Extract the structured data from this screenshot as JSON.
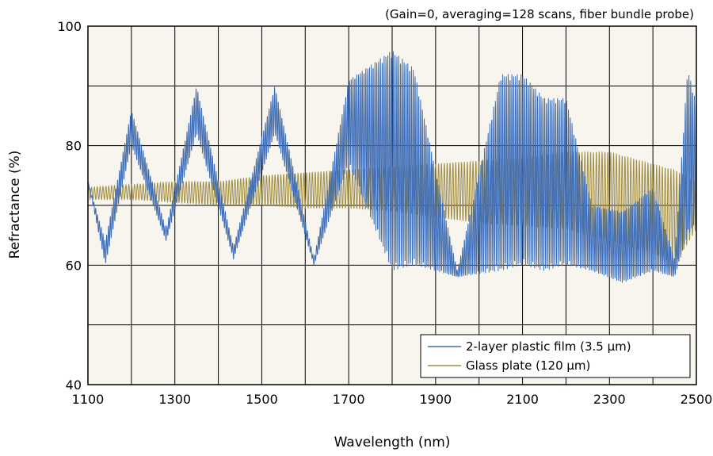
{
  "chart_data": {
    "type": "line",
    "annotation": "(Gain=0, averaging=128 scans, fiber bundle probe)",
    "xlabel": "Wavelength (nm)",
    "ylabel": "Refractance (%)",
    "xlim": [
      1100,
      2500
    ],
    "ylim": [
      40,
      100
    ],
    "x_ticks": [
      1100,
      1300,
      1500,
      1700,
      1900,
      2100,
      2300,
      2500
    ],
    "y_ticks": [
      40,
      60,
      80,
      100
    ],
    "x_grid_step": 100,
    "y_grid_step": 10,
    "grid": true,
    "plot_background": "#f7f5ee",
    "legend": {
      "position": "bottom-right"
    },
    "series": [
      {
        "name": "2-layer plastic film (3.5 µm)",
        "color": "#3f6db5",
        "envelope": {
          "x": [
            1100,
            1140,
            1200,
            1280,
            1350,
            1435,
            1530,
            1620,
            1700,
            1800,
            1850,
            1950,
            2050,
            2100,
            2150,
            2200,
            2260,
            2330,
            2400,
            2450,
            2480,
            2500
          ],
          "upper": [
            74,
            64,
            86,
            66,
            90,
            63,
            90,
            61,
            91,
            96,
            93,
            59,
            92,
            92,
            88,
            88,
            70,
            69,
            73,
            61,
            93,
            87
          ],
          "lower": [
            74,
            60,
            80,
            64,
            82,
            61,
            82,
            60,
            77,
            59,
            60,
            58,
            59,
            60,
            59,
            60,
            59,
            57,
            59,
            58,
            65,
            67
          ]
        }
      },
      {
        "name": "Glass plate (120 µm)",
        "color": "#a08c42",
        "envelope": {
          "x": [
            1100,
            1200,
            1300,
            1400,
            1500,
            1600,
            1700,
            1800,
            1900,
            2000,
            2100,
            2200,
            2300,
            2400,
            2450,
            2500
          ],
          "upper": [
            73,
            73.5,
            74,
            74,
            75,
            75.5,
            76,
            76.5,
            77,
            77.5,
            78,
            79,
            79,
            77,
            76,
            74
          ],
          "lower": [
            71,
            71,
            70.5,
            70,
            70,
            69.5,
            69.5,
            69,
            68,
            67,
            66.5,
            66,
            64,
            62,
            60,
            66
          ]
        }
      }
    ]
  }
}
